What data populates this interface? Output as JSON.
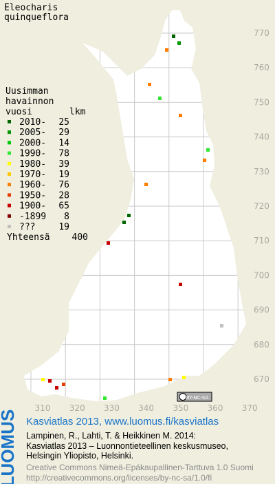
{
  "title": [
    "Eleocharis",
    "quinqueflora"
  ],
  "legend": {
    "heading": [
      "Uusimman",
      "havainnon"
    ],
    "col_year": "vuosi",
    "col_count": "lkm",
    "rows": [
      {
        "label": "2010-",
        "count": 25,
        "color": "#006400"
      },
      {
        "label": "2005-",
        "count": 29,
        "color": "#009600"
      },
      {
        "label": "2000-",
        "count": 14,
        "color": "#00c800"
      },
      {
        "label": "1990-",
        "count": 78,
        "color": "#32e632"
      },
      {
        "label": "1980-",
        "count": 39,
        "color": "#ffff00"
      },
      {
        "label": "1970-",
        "count": 19,
        "color": "#ffc800"
      },
      {
        "label": "1960-",
        "count": 76,
        "color": "#ff7d00"
      },
      {
        "label": "1950-",
        "count": 28,
        "color": "#e63c00"
      },
      {
        "label": "1900-",
        "count": 65,
        "color": "#c80000"
      },
      {
        "label": "-1899",
        "count": 8,
        "color": "#800000"
      },
      {
        "label": "???",
        "count": 19,
        "color": "#c0c0c0"
      }
    ],
    "total_label": "Yhteensä",
    "total": 400
  },
  "grid": {
    "y_labels": [
      770,
      760,
      750,
      740,
      730,
      720,
      710,
      700,
      690,
      680,
      670
    ],
    "x_labels": [
      310,
      320,
      330,
      340,
      350,
      360,
      370
    ]
  },
  "badge": "BY-NC-SA",
  "logo": "LUOMUS",
  "footer": {
    "link": "Kasviatlas 2013, www.luomus.fi/kasviatlas",
    "citation": [
      "Lampinen, R., Lahti, T. & Heikkinen M. 2014:",
      "Kasviatlas 2013 – Luonnontieteellinen keskusmuseo,",
      "Helsingin Yliopisto, Helsinki."
    ],
    "license": [
      "Creative Commons Nimeä-Epäkaupallinen-Tarttuva 1.0 Suomi",
      "http://creativecommons.org/licenses/by-nc-sa/1.0/fi"
    ]
  }
}
